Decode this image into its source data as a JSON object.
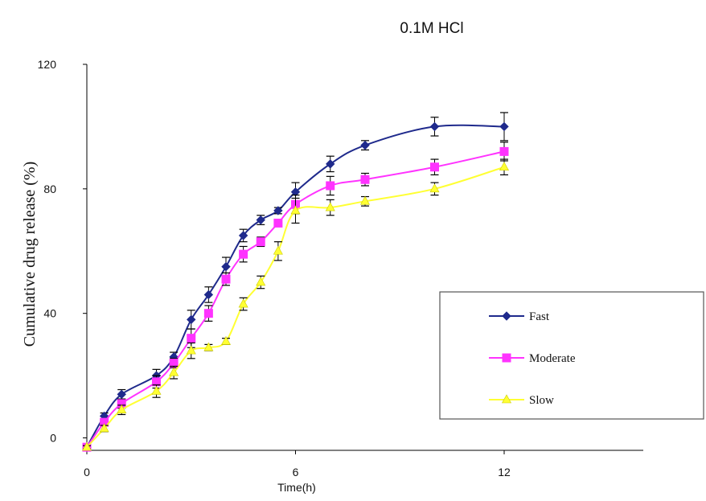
{
  "chart_data": {
    "type": "line",
    "title": "0.1M HCl",
    "xlabel": "Time(h)",
    "ylabel": "Cumulative drug release (%)",
    "xlim": [
      0,
      16
    ],
    "ylim": [
      -4,
      120
    ],
    "xticks": [
      0,
      6,
      12
    ],
    "yticks": [
      0,
      40,
      80,
      120
    ],
    "grid": false,
    "legend_position": "right",
    "series": [
      {
        "name": "Fast",
        "color": "#1f2a8c",
        "marker": "diamond",
        "points": [
          [
            0,
            -3
          ],
          [
            0.5,
            7
          ],
          [
            1,
            14
          ],
          [
            2,
            20
          ],
          [
            2.5,
            26
          ],
          [
            3,
            38
          ],
          [
            3.5,
            46
          ],
          [
            4,
            55
          ],
          [
            4.5,
            65
          ],
          [
            5,
            70
          ],
          [
            5.5,
            73
          ],
          [
            6,
            79
          ],
          [
            7,
            88
          ],
          [
            8,
            94
          ],
          [
            10,
            100
          ],
          [
            12,
            100
          ]
        ],
        "errors": [
          0.5,
          1,
          1.5,
          2,
          1.5,
          3,
          2.5,
          3,
          2,
          1.5,
          1,
          3,
          2.5,
          1.5,
          3,
          4.5
        ]
      },
      {
        "name": "Moderate",
        "color": "#ff33ff",
        "marker": "square",
        "points": [
          [
            0,
            -3
          ],
          [
            0.5,
            5
          ],
          [
            1,
            11
          ],
          [
            2,
            18
          ],
          [
            2.5,
            24
          ],
          [
            3,
            32
          ],
          [
            3.5,
            40
          ],
          [
            4,
            51
          ],
          [
            4.5,
            59
          ],
          [
            5,
            63
          ],
          [
            5.5,
            69
          ],
          [
            6,
            75
          ],
          [
            7,
            81
          ],
          [
            8,
            83
          ],
          [
            10,
            87
          ],
          [
            12,
            92
          ]
        ],
        "errors": [
          0.5,
          1,
          1.5,
          2,
          1.5,
          3,
          2.5,
          2,
          2.5,
          1.5,
          1,
          3,
          3,
          2,
          2.5,
          3
        ]
      },
      {
        "name": "Slow",
        "color": "#ffff33",
        "marker": "triangle",
        "points": [
          [
            0,
            -3
          ],
          [
            0.5,
            3
          ],
          [
            1,
            9
          ],
          [
            2,
            15
          ],
          [
            2.5,
            21
          ],
          [
            3,
            28
          ],
          [
            3.5,
            29
          ],
          [
            4,
            31
          ],
          [
            4.5,
            43
          ],
          [
            5,
            50
          ],
          [
            5.5,
            60
          ],
          [
            6,
            73
          ],
          [
            7,
            74
          ],
          [
            8,
            76
          ],
          [
            10,
            80
          ],
          [
            12,
            87
          ]
        ],
        "errors": [
          0.5,
          1,
          1.5,
          2,
          2,
          2.5,
          1,
          1,
          2,
          2,
          3,
          4,
          2.5,
          1.5,
          2,
          2.5
        ]
      }
    ]
  }
}
